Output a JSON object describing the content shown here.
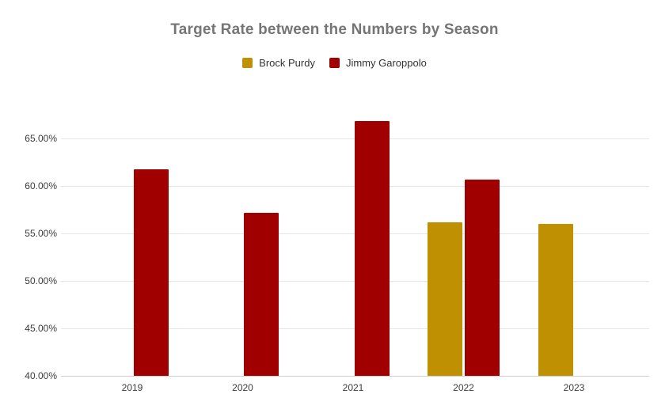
{
  "chart_data": {
    "type": "bar",
    "title": "Target Rate between the Numbers by Season",
    "categories": [
      "2019",
      "2020",
      "2021",
      "2022",
      "2023"
    ],
    "series": [
      {
        "name": "Brock Purdy",
        "color": "#BF9002",
        "values": [
          null,
          null,
          null,
          56.1,
          56.0
        ]
      },
      {
        "name": "Jimmy Garoppolo",
        "color": "#A00000",
        "values": [
          61.7,
          57.1,
          66.8,
          60.6,
          null
        ]
      }
    ],
    "xlabel": "",
    "ylabel": "",
    "ylim": [
      40,
      67.5
    ],
    "yticks": [
      40,
      45,
      50,
      55,
      60,
      65
    ],
    "ytick_labels": [
      "40.00%",
      "45.00%",
      "50.00%",
      "55.00%",
      "60.00%",
      "65.00%"
    ],
    "value_format": "percent",
    "grid": true,
    "legend_position": "top",
    "background_color": "#ffffff",
    "title_color": "#757575"
  }
}
